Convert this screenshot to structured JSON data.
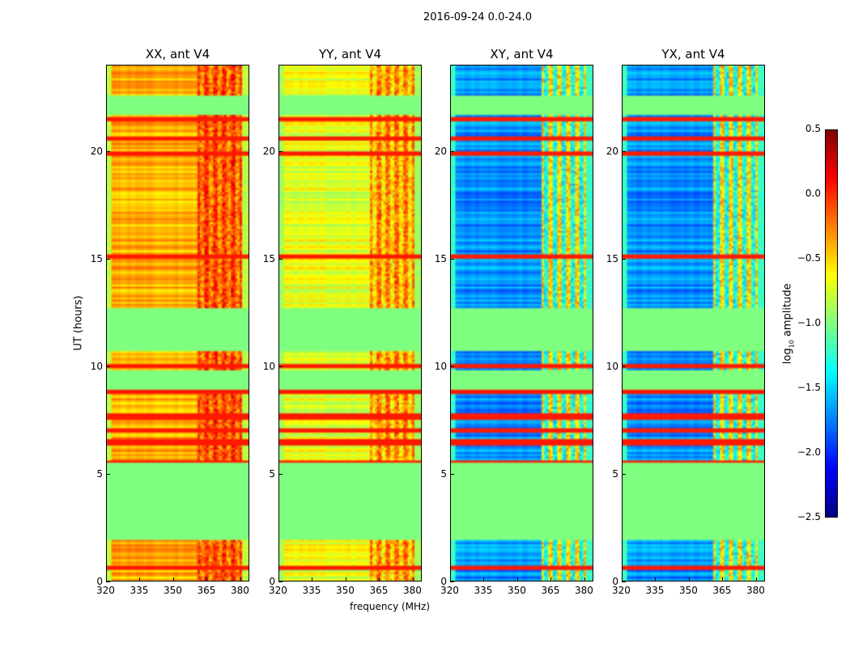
{
  "suptitle": "2016-09-24 0.0-24.0",
  "chart_data": {
    "type": "heatmap",
    "title": "2016-09-24 0.0-24.0",
    "xlabel": "frequency (MHz)",
    "ylabel": "UT (hours)",
    "xlim": [
      320,
      384
    ],
    "ylim": [
      0,
      24
    ],
    "xticks": [
      "320",
      "335",
      "350",
      "365",
      "380"
    ],
    "yticks": [
      "0",
      "5",
      "10",
      "15",
      "20"
    ],
    "colorbar": {
      "label": "log10 amplitude",
      "label_main": "log",
      "label_sub": "10",
      "label_rest": " amplitude",
      "clim": [
        -2.5,
        0.5
      ],
      "ticks": [
        "0.5",
        "0.0",
        "−0.5",
        "−1.0",
        "−1.5",
        "−2.0",
        "−2.5"
      ],
      "colormap": "jet"
    },
    "flagged_hours": [
      [
        1.95,
        5.5
      ],
      [
        8.9,
        9.75
      ],
      [
        10.7,
        12.7
      ],
      [
        21.7,
        22.6
      ]
    ],
    "rfi_band_mhz": [
      361,
      381
    ],
    "panels": [
      {
        "title": "XX, ant V4",
        "base_level": -0.4,
        "rfi_level": 0.0
      },
      {
        "title": "YY, ant V4",
        "base_level": -0.7,
        "rfi_level": -0.2
      },
      {
        "title": "XY, ant V4",
        "base_level": -1.7,
        "rfi_level": -0.5
      },
      {
        "title": "YX, ant V4",
        "base_level": -1.7,
        "rfi_level": -0.5
      }
    ]
  }
}
